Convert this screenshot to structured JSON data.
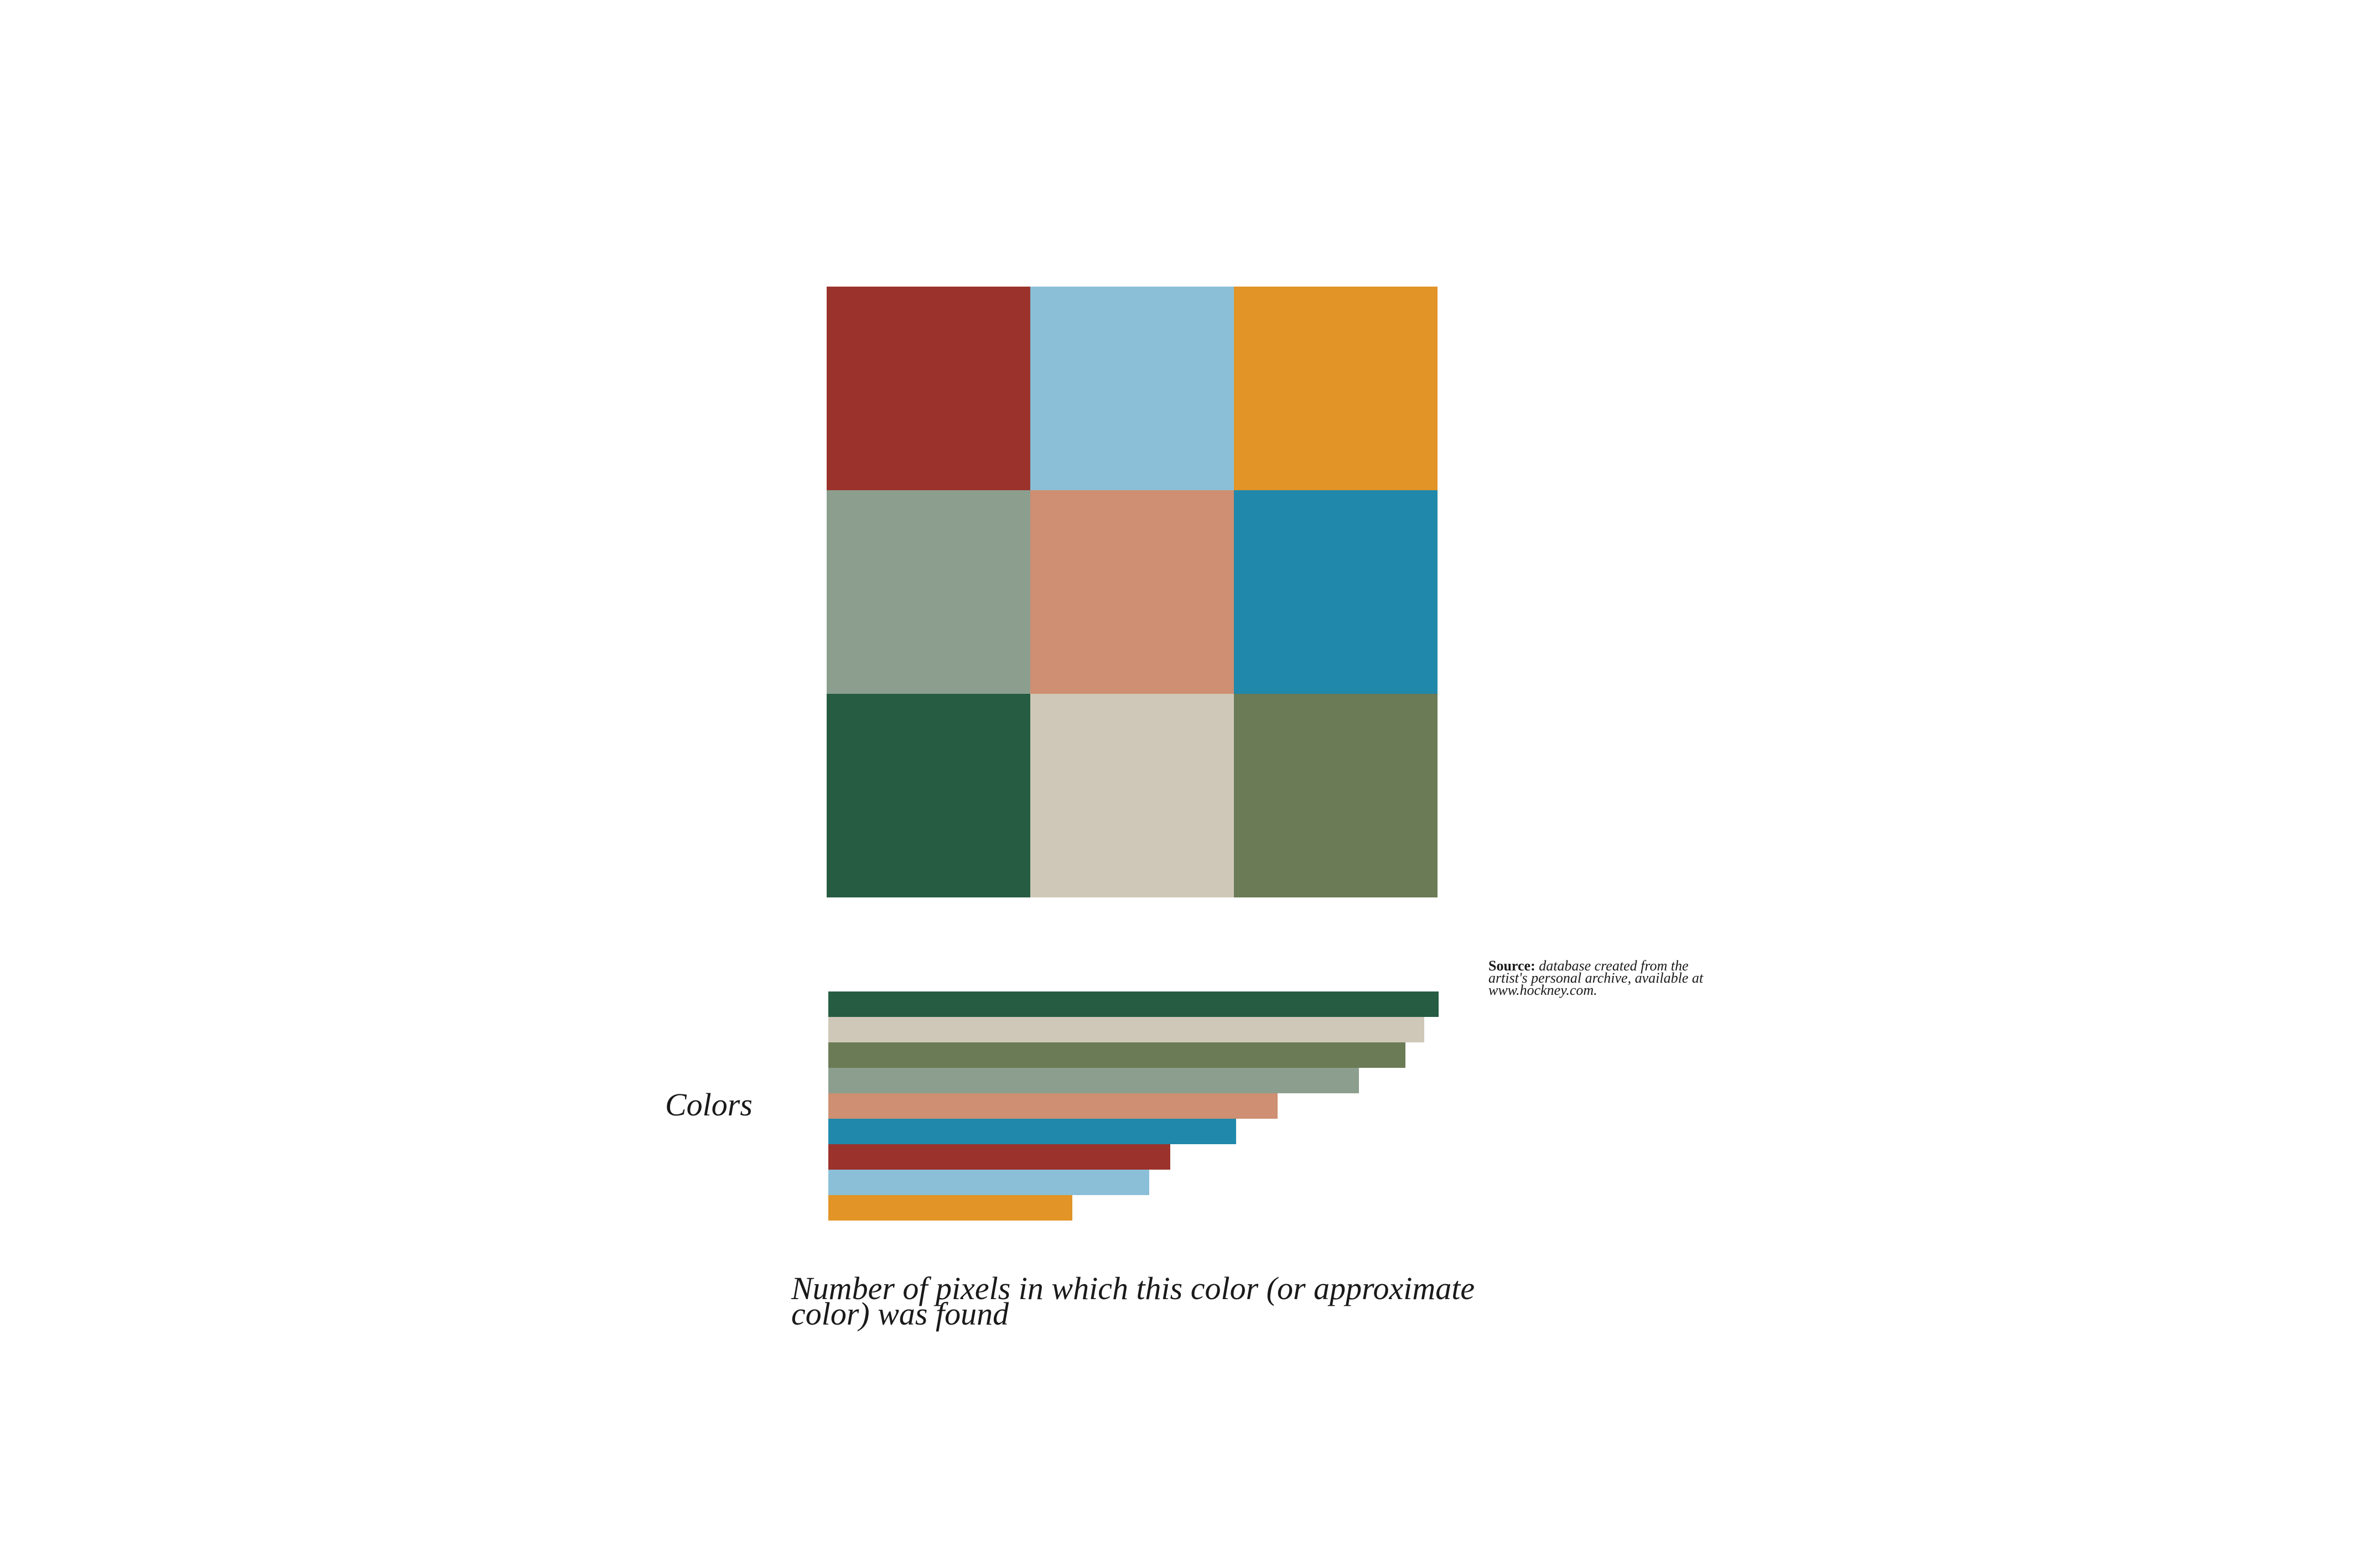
{
  "chart_data": [
    {
      "type": "heatmap",
      "rows": 3,
      "cols": 3,
      "cells": [
        {
          "color": "#9b332c"
        },
        {
          "color": "#8bbfd7"
        },
        {
          "color": "#e29426"
        },
        {
          "color": "#8c9f8f"
        },
        {
          "color": "#ce8f72"
        },
        {
          "color": "#2088ab"
        },
        {
          "color": "#265c42"
        },
        {
          "color": "#cfc8b8"
        },
        {
          "color": "#6b7b56"
        }
      ]
    },
    {
      "type": "bar",
      "orientation": "horizontal",
      "ylabel": "Colors",
      "xlabel": "Number of pixels in which this color (or approximate color) was found",
      "xlim": [
        0,
        100
      ],
      "grid": false,
      "bars": [
        {
          "color": "#265c42",
          "value": 100
        },
        {
          "color": "#cfc8b8",
          "value": 97.6
        },
        {
          "color": "#6b7b56",
          "value": 94.6
        },
        {
          "color": "#8c9f8f",
          "value": 86.9
        },
        {
          "color": "#ce8f72",
          "value": 73.6
        },
        {
          "color": "#2088ab",
          "value": 66.8
        },
        {
          "color": "#9b332c",
          "value": 56.0
        },
        {
          "color": "#8bbfd7",
          "value": 52.6
        },
        {
          "color": "#e29426",
          "value": 40.0
        }
      ]
    }
  ],
  "source": {
    "label": "Source:",
    "text": "database created from the artist's personal archive, available at www.hockney.com."
  }
}
